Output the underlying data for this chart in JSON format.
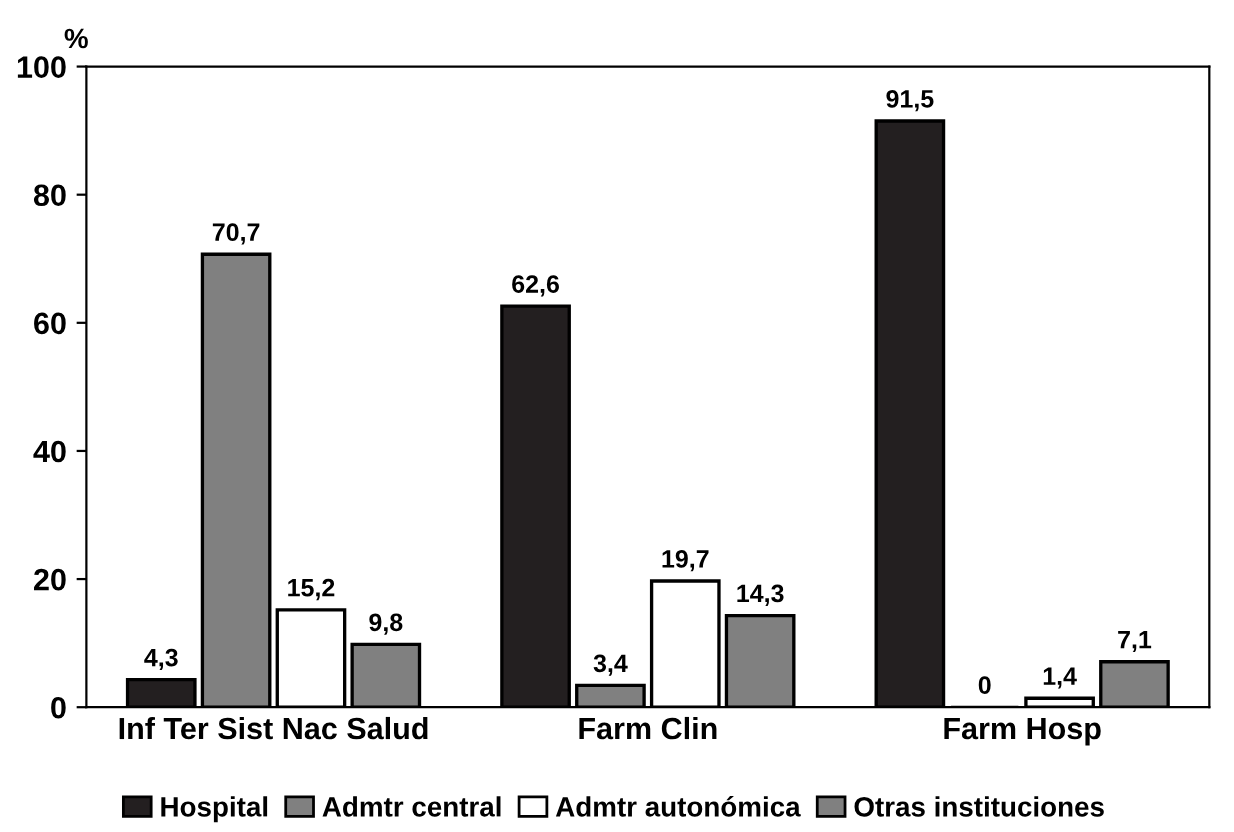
{
  "chart_data": {
    "type": "bar",
    "ylabel": "%",
    "categories": [
      "Inf Ter Sist Nac Salud",
      "Farm Clin",
      "Farm Hosp"
    ],
    "series": [
      {
        "name": "Hospital",
        "color": "#231f20",
        "values": [
          4.3,
          62.6,
          91.5
        ],
        "value_labels": [
          "4,3",
          "62,6",
          "91,5"
        ]
      },
      {
        "name": "Admtr central",
        "color": "#808080",
        "values": [
          70.7,
          3.4,
          0
        ],
        "value_labels": [
          "70,7",
          "3,4",
          "0"
        ]
      },
      {
        "name": "Admtr autonómica",
        "color": "#ffffff",
        "values": [
          15.2,
          19.7,
          1.4
        ],
        "value_labels": [
          "15,2",
          "19,7",
          "1,4"
        ]
      },
      {
        "name": "Otras instituciones",
        "color": "#808080",
        "values": [
          9.8,
          14.3,
          7.1
        ],
        "value_labels": [
          "9,8",
          "14,3",
          "7,1"
        ]
      }
    ],
    "ylim": [
      0,
      100
    ],
    "yticks": [
      0,
      20,
      40,
      60,
      80,
      100
    ],
    "grid": false,
    "legend": "bottom"
  }
}
